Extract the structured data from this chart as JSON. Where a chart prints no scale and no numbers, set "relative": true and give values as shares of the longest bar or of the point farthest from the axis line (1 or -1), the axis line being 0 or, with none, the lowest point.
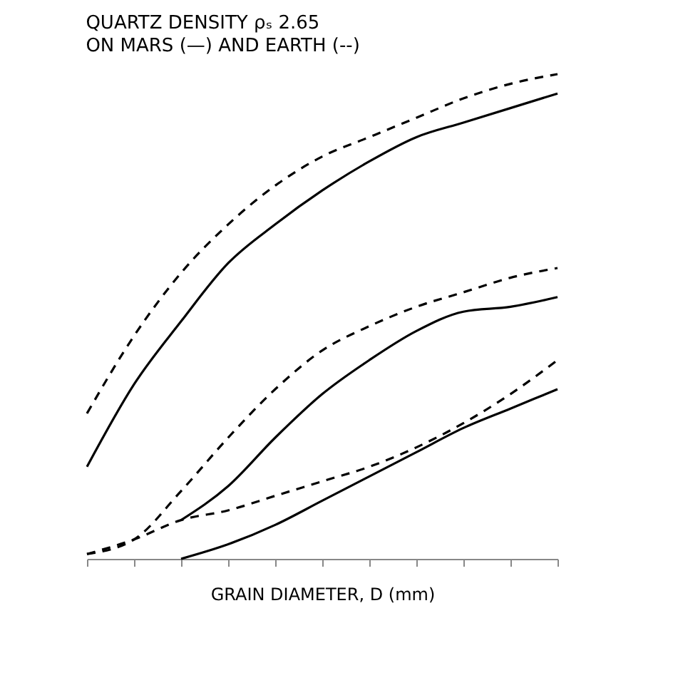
{
  "chart_data": {
    "type": "line",
    "title": "QUARTZ DENSITY ρₛ 2.65",
    "subtitle": "ON MARS (—) AND EARTH (--)",
    "xlabel": "GRAIN DIAMETER, D (mm)",
    "relative": true,
    "legend": false,
    "grid": false,
    "tick_labels": false,
    "marker": "none",
    "categories": [
      null,
      null,
      null,
      null,
      null,
      null,
      null,
      null,
      null,
      null,
      null
    ],
    "series": [
      {
        "color": "#000000",
        "line_style": "dashed",
        "values": [
          0.3,
          0.46,
          0.59,
          0.69,
          0.77,
          0.83,
          0.87,
          0.91,
          0.95,
          0.98,
          1
        ]
      },
      {
        "color": "#000000",
        "line_style": "solid",
        "values": [
          0.19,
          0.36,
          0.49,
          0.61,
          0.69,
          0.76,
          0.82,
          0.87,
          0.9,
          0.93,
          0.96
        ]
      },
      {
        "color": "#000000",
        "line_style": "dashed",
        "values": [
          0.01,
          0.04,
          0.14,
          0.25,
          0.35,
          0.43,
          0.48,
          0.52,
          0.55,
          0.58,
          0.6
        ]
      },
      {
        "color": "#000000",
        "line_style": "solid",
        "values": [
          null,
          null,
          0.08,
          0.15,
          0.25,
          0.34,
          0.41,
          0.47,
          0.51,
          0.52,
          0.54
        ]
      },
      {
        "color": "#000000",
        "line_style": "dashed",
        "values": [
          0.01,
          0.04,
          0.08,
          0.1,
          0.13,
          0.16,
          0.19,
          0.23,
          0.28,
          0.34,
          0.41
        ]
      },
      {
        "color": "#000000",
        "line_style": "solid",
        "values": [
          null,
          null,
          0.0,
          0.03,
          0.07,
          0.12,
          0.17,
          0.22,
          0.27,
          0.31,
          0.35
        ]
      }
    ]
  }
}
